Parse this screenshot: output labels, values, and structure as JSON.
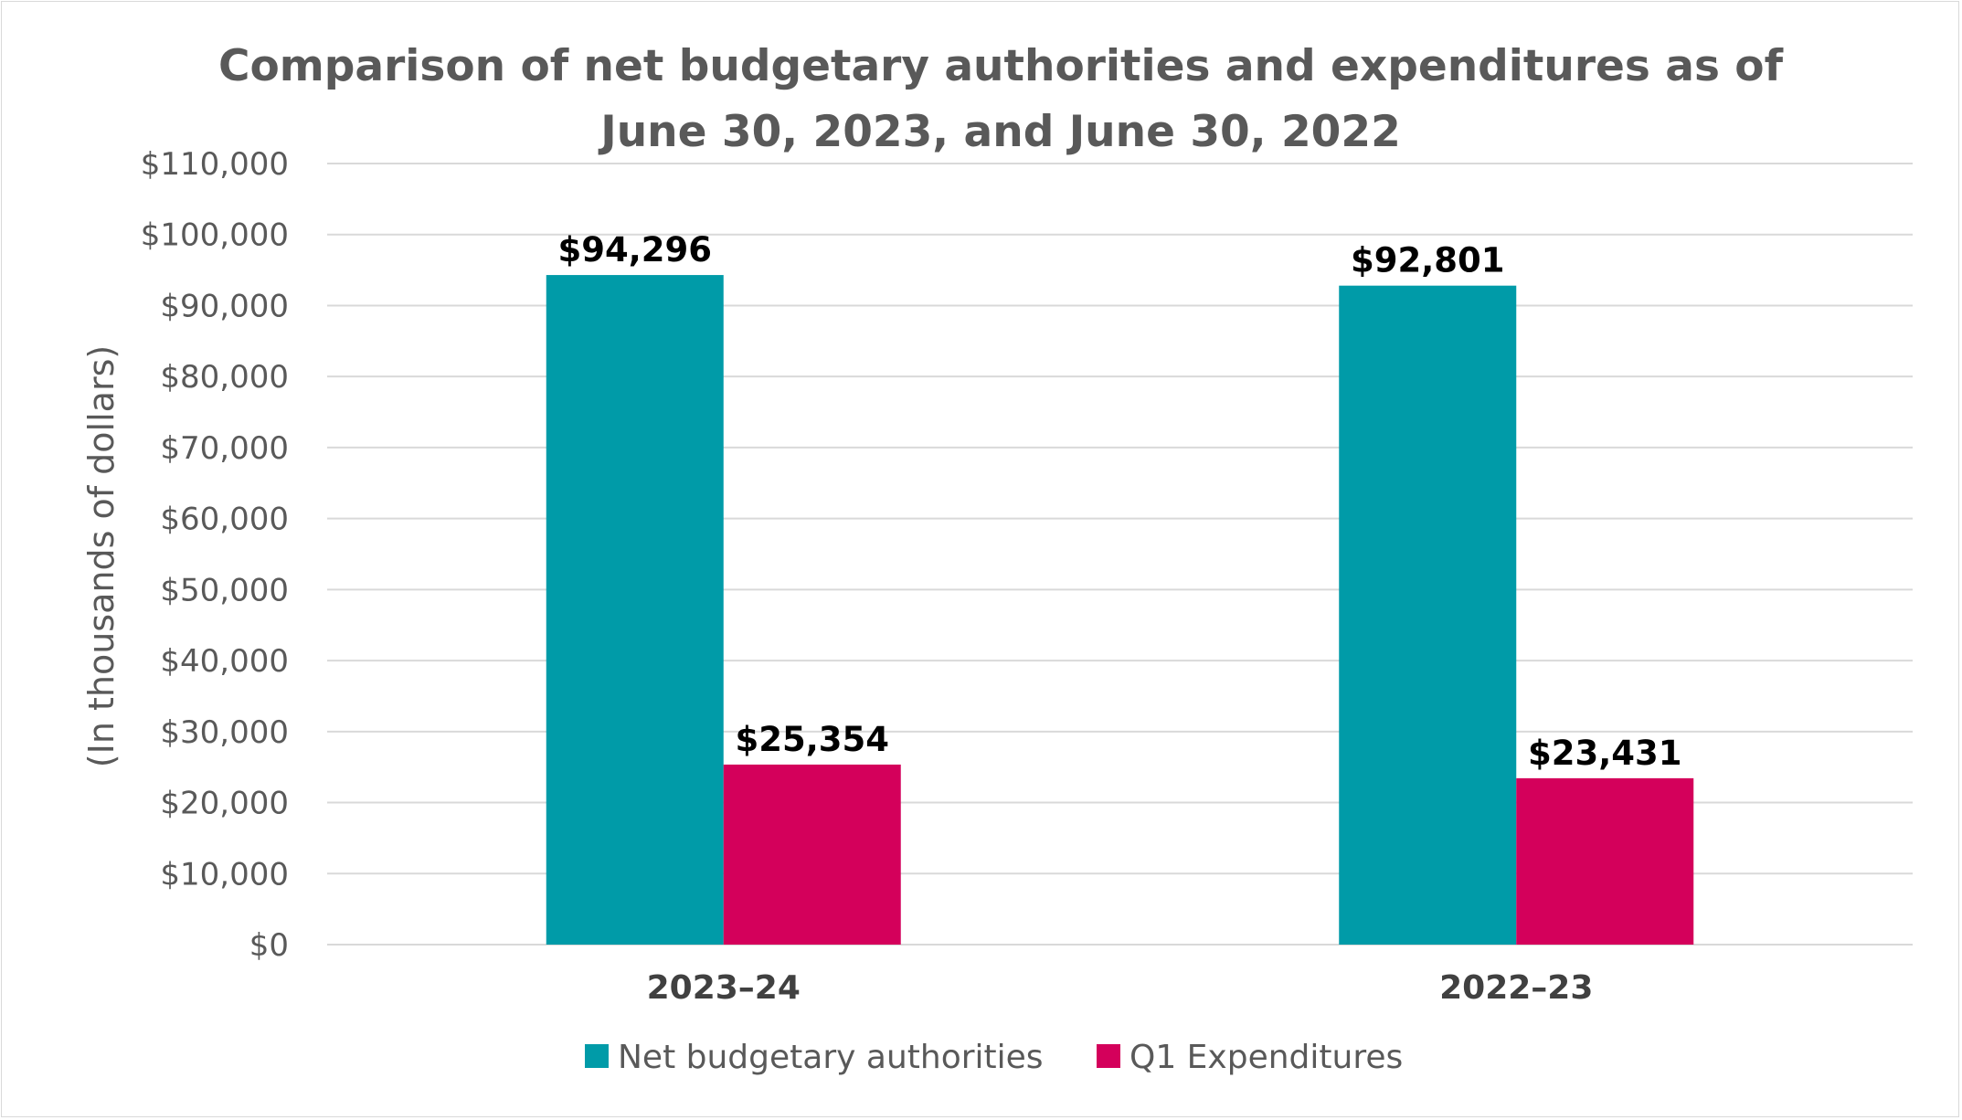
{
  "chart_data": {
    "type": "bar",
    "title_lines": [
      "Comparison of net budgetary authorities and expenditures as of",
      "June 30, 2023, and June 30, 2022"
    ],
    "xlabel": "",
    "ylabel": "(In thousands of dollars)",
    "ylim": [
      0,
      110000
    ],
    "ytick_step": 10000,
    "y_tick_labels": [
      "$0",
      "$10,000",
      "$20,000",
      "$30,000",
      "$40,000",
      "$50,000",
      "$60,000",
      "$70,000",
      "$80,000",
      "$90,000",
      "$100,000",
      "$110,000"
    ],
    "categories": [
      "2023–24",
      "2022–23"
    ],
    "series": [
      {
        "name": "Net budgetary authorities",
        "color": "#009ba8",
        "values": [
          94296,
          92801
        ],
        "value_labels": [
          "$94,296",
          "$92,801"
        ]
      },
      {
        "name": "Q1 Expenditures",
        "color": "#d4005b",
        "values": [
          25354,
          23431
        ],
        "value_labels": [
          "$25,354",
          "$23,431"
        ]
      }
    ],
    "grid": true,
    "gridline_color": "#d9d9d9",
    "legend_position": "bottom"
  }
}
